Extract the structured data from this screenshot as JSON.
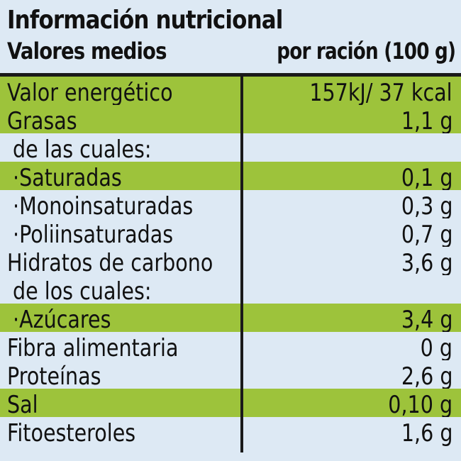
{
  "header": {
    "title": "Información nutricional",
    "subtitle": "Valores medios",
    "serving": "por ración (100 g)"
  },
  "colors": {
    "highlight": "#9dc33b",
    "background": "#dde9f4",
    "rule": "#1a1a1a"
  },
  "rows": [
    {
      "name": "Valor energético",
      "value": "157kJ/ 37 kcal",
      "style": "green",
      "indent": false
    },
    {
      "name": "Grasas",
      "value": "1,1 g",
      "style": "green",
      "indent": false
    },
    {
      "name": "de las cuales:",
      "value": "",
      "style": "blue",
      "indent": true
    },
    {
      "name": "·Saturadas",
      "value": "0,1 g",
      "style": "green",
      "indent": true
    },
    {
      "name": "·Monoinsaturadas",
      "value": "0,3 g",
      "style": "blue",
      "indent": true
    },
    {
      "name": "·Poliinsaturadas",
      "value": "0,7 g",
      "style": "blue",
      "indent": true
    },
    {
      "name": "Hidratos de carbono",
      "value": "3,6 g",
      "style": "blue",
      "indent": false
    },
    {
      "name": "de los cuales:",
      "value": "",
      "style": "blue",
      "indent": true
    },
    {
      "name": "·Azúcares",
      "value": "3,4 g",
      "style": "green",
      "indent": true
    },
    {
      "name": "Fibra alimentaria",
      "value": "0 g",
      "style": "blue",
      "indent": false
    },
    {
      "name": "Proteínas",
      "value": "2,6 g",
      "style": "blue",
      "indent": false
    },
    {
      "name": "Sal",
      "value": "0,10 g",
      "style": "green",
      "indent": false
    },
    {
      "name": "Fitoesteroles",
      "value": "1,6 g",
      "style": "blue",
      "indent": false
    }
  ]
}
